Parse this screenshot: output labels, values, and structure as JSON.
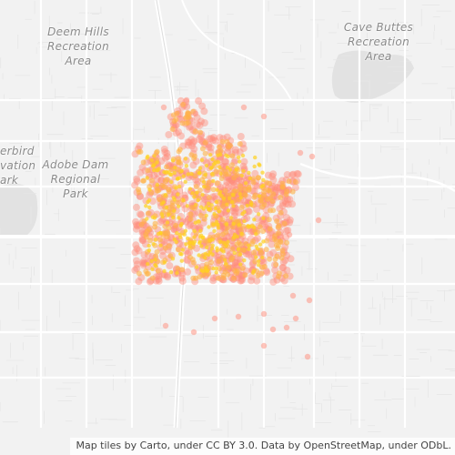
{
  "map": {
    "labels": [
      {
        "name": "deem-hills-label",
        "lines": [
          "Deem Hills",
          "Recreation",
          "Area"
        ]
      },
      {
        "name": "cave-buttes-label",
        "lines": [
          "Cave Buttes",
          "Recreation",
          "Area"
        ]
      },
      {
        "name": "adobe-dam-label",
        "lines": [
          "Adobe Dam",
          "Regional",
          "Park"
        ]
      },
      {
        "name": "thunderbird-label",
        "lines": [
          "erbird",
          "vation",
          "ark"
        ]
      }
    ],
    "attribution": "Map tiles by Carto, under CC BY 3.0. Data by OpenStreetMap, under ODbL.",
    "colors": {
      "background": "#f2f2f2",
      "road": "#ffffff",
      "park": "#e2e2e2",
      "hotspot_core": "#ffd21f",
      "hotspot_mid": "#ffb347",
      "hotspot_edge": "#ff8c7a"
    }
  }
}
